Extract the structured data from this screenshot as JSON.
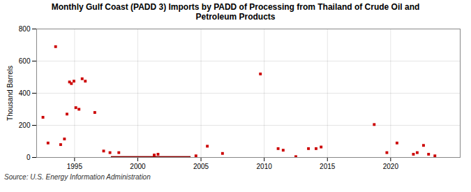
{
  "chart_data": {
    "type": "scatter",
    "title": "Monthly Gulf Coast (PADD 3) Imports by PADD of Processing from Thailand of Crude Oil and\nPetroleum Products",
    "ylabel": "Thousand Barrels",
    "source": "Source: U.S. Energy Information Administration",
    "x": [
      1992.5,
      1992.9,
      1993.5,
      1993.9,
      1994.2,
      1994.4,
      1994.6,
      1994.75,
      1994.95,
      1995.1,
      1995.35,
      1995.6,
      1995.85,
      1996.6,
      1997.3,
      1997.8,
      1998.5,
      2001.3,
      2001.6,
      2004.6,
      2005.5,
      2006.7,
      2009.7,
      2011.1,
      2011.5,
      2012.5,
      2013.5,
      2014.1,
      2014.5,
      2018.7,
      2019.7,
      2020.5,
      2021.8,
      2022.1,
      2022.6,
      2023.0,
      2023.5
    ],
    "values": [
      250,
      90,
      690,
      80,
      115,
      270,
      470,
      460,
      475,
      310,
      300,
      490,
      475,
      280,
      40,
      30,
      30,
      15,
      20,
      10,
      70,
      25,
      520,
      55,
      45,
      5,
      55,
      55,
      65,
      205,
      30,
      90,
      20,
      30,
      75,
      20,
      10
    ],
    "color": "#cc0000",
    "marker": "square",
    "band": {
      "x": [
        1997.9,
        2004.2
      ],
      "y": [
        0,
        6
      ],
      "color": "#880000"
    },
    "xlim": [
      1992.0,
      2025.5
    ],
    "xticks": [
      1995,
      2000,
      2005,
      2010,
      2015,
      2020
    ],
    "ylim": [
      0,
      800
    ],
    "yticks": [
      0,
      200,
      400,
      600,
      800
    ],
    "grid": true
  }
}
